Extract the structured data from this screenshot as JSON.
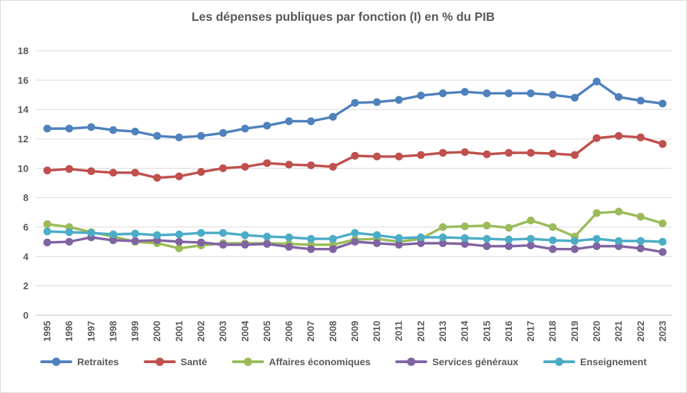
{
  "chart_data": {
    "type": "line",
    "title": "Les dépenses publiques par fonction (I) en % du PIB",
    "xlabel": "",
    "ylabel": "",
    "ylim": [
      0,
      18
    ],
    "ytick_step": 2,
    "grid": true,
    "legend_position": "bottom",
    "title_color": "#595959",
    "axis_text_color": "#595959",
    "gridline_color": "#d9d9d9",
    "x": [
      1995,
      1996,
      1997,
      1998,
      1999,
      2000,
      2001,
      2002,
      2003,
      2004,
      2005,
      2006,
      2007,
      2008,
      2009,
      2010,
      2011,
      2012,
      2013,
      2014,
      2015,
      2016,
      2017,
      2018,
      2019,
      2020,
      2021,
      2022,
      2023
    ],
    "series": [
      {
        "name": "Retraites",
        "color": "#4F81BD",
        "values": [
          12.7,
          12.7,
          12.8,
          12.6,
          12.5,
          12.2,
          12.1,
          12.2,
          12.4,
          12.7,
          12.9,
          13.2,
          13.2,
          13.5,
          14.45,
          14.5,
          14.65,
          14.95,
          15.1,
          15.2,
          15.1,
          15.1,
          15.1,
          15.0,
          14.8,
          15.9,
          14.85,
          14.6,
          14.4
        ]
      },
      {
        "name": "Santé",
        "color": "#C0504D",
        "values": [
          9.85,
          9.95,
          9.8,
          9.7,
          9.7,
          9.35,
          9.45,
          9.75,
          10.0,
          10.1,
          10.35,
          10.25,
          10.2,
          10.1,
          10.85,
          10.8,
          10.8,
          10.9,
          11.05,
          11.1,
          10.95,
          11.05,
          11.05,
          11.0,
          10.9,
          12.05,
          12.2,
          12.1,
          11.65
        ]
      },
      {
        "name": "Affaires économiques",
        "color": "#9BBB59",
        "values": [
          6.2,
          6.0,
          5.65,
          5.35,
          5.0,
          4.9,
          4.55,
          4.75,
          4.9,
          4.9,
          4.9,
          4.85,
          4.8,
          4.8,
          5.15,
          5.2,
          5.0,
          5.2,
          6.0,
          6.05,
          6.1,
          5.95,
          6.45,
          6.0,
          5.35,
          6.95,
          7.05,
          6.7,
          6.25
        ]
      },
      {
        "name": "Services généraux",
        "color": "#8064A2",
        "values": [
          4.95,
          5.0,
          5.3,
          5.1,
          5.05,
          5.1,
          5.0,
          4.95,
          4.8,
          4.8,
          4.85,
          4.65,
          4.5,
          4.5,
          5.0,
          4.9,
          4.8,
          4.9,
          4.9,
          4.85,
          4.7,
          4.7,
          4.75,
          4.5,
          4.5,
          4.7,
          4.7,
          4.55,
          4.3
        ]
      },
      {
        "name": "Enseignement",
        "color": "#4BACC6",
        "values": [
          5.7,
          5.65,
          5.6,
          5.5,
          5.55,
          5.45,
          5.5,
          5.6,
          5.6,
          5.45,
          5.35,
          5.3,
          5.2,
          5.2,
          5.6,
          5.45,
          5.25,
          5.3,
          5.3,
          5.25,
          5.2,
          5.15,
          5.2,
          5.1,
          5.05,
          5.2,
          5.05,
          5.05,
          5.0
        ]
      }
    ]
  }
}
